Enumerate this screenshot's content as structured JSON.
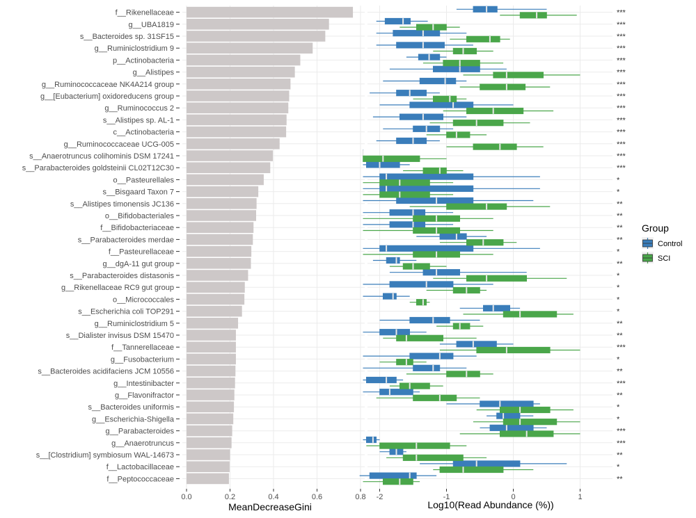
{
  "chart_data": [
    {
      "type": "bar",
      "orientation": "horizontal",
      "xlabel": "MeanDecreaseGini",
      "xlim": [
        0,
        0.8
      ],
      "xticks": [
        "0.0",
        "0.2",
        "0.4",
        "0.6",
        "0.8"
      ],
      "tick_values": [
        0.0,
        0.2,
        0.4,
        0.6,
        0.8
      ],
      "categories": [
        "f__Rikenellaceae",
        "g__UBA1819",
        "s__Bacteroides sp. 31SF15",
        "g__Ruminiclostridium 9",
        "p__Actinobacteria",
        "g__Alistipes",
        "g__Ruminococcaceae NK4A214 group",
        "g__[Eubacterium] oxidoreducens group",
        "g__Ruminococcus 2",
        "s__Alistipes sp. AL-1",
        "c__Actinobacteria",
        "g__Ruminococcaceae UCG-005",
        "s__Anaerotruncus colihominis DSM 17241",
        "s__Parabacteroides goldsteinii CL02T12C30",
        "o__Pasteurellales",
        "s__Bisgaard Taxon 7",
        "s__Alistipes timonensis JC136",
        "o__Bifidobacteriales",
        "f__Bifidobacteriaceae",
        "s__Parabacteroides merdae",
        "f__Pasteurellaceae",
        "g__dgA-11 gut group",
        "s__Parabacteroides distasonis",
        "g__Rikenellaceae RC9 gut group",
        "o__Micrococcales",
        "s__Escherichia coli TOP291",
        "g__Ruminiclostridium 5",
        "s__Dialister invisus DSM 15470",
        "f__Tannerellaceae",
        "g__Fusobacterium",
        "s__Bacteroides acidifaciens JCM 10556",
        "g__Intestinibacter",
        "g__Flavonifractor",
        "s__Bacteroides uniformis",
        "g__Escherichia-Shigella",
        "g__Parabacteroides",
        "g__Anaerotruncus",
        "s__[Clostridium] symbiosum WAL-14673",
        "f__Lactobacillaceae",
        "f__Peptococcaceae"
      ],
      "values": [
        0.765,
        0.655,
        0.638,
        0.58,
        0.523,
        0.498,
        0.478,
        0.472,
        0.468,
        0.46,
        0.458,
        0.428,
        0.397,
        0.385,
        0.355,
        0.33,
        0.322,
        0.32,
        0.308,
        0.305,
        0.298,
        0.296,
        0.283,
        0.268,
        0.266,
        0.255,
        0.237,
        0.227,
        0.227,
        0.227,
        0.225,
        0.223,
        0.22,
        0.218,
        0.215,
        0.21,
        0.207,
        0.2,
        0.198,
        0.195
      ]
    },
    {
      "type": "box",
      "orientation": "horizontal",
      "xlabel": "Log10(Read Abundance (%))",
      "xlim": [
        -2.3,
        1.4
      ],
      "xticks": [
        "-2",
        "-1",
        "0",
        "1"
      ],
      "tick_values": [
        -2,
        -1,
        0,
        1
      ],
      "legend": {
        "title": "Group",
        "position": "right",
        "entries": [
          "Control",
          "SCI"
        ]
      },
      "colors": {
        "Control": "#3a7dba",
        "SCI": "#4aa64a",
        "median": "#e8e8e8",
        "bar": "#cdc8c8",
        "grid": "#ebebeb"
      },
      "significance": [
        "***",
        "***",
        "***",
        "***",
        "***",
        "***",
        "***",
        "***",
        "***",
        "***",
        "***",
        "***",
        "***",
        "***",
        "*",
        "*",
        "**",
        "**",
        "**",
        "**",
        "*",
        "**",
        "*",
        "*",
        "*",
        "*",
        "**",
        "**",
        "***",
        "*",
        "**",
        "***",
        "**",
        "*",
        "*",
        "***",
        "***",
        "**",
        "*",
        "**"
      ],
      "series": [
        {
          "name": "Control",
          "boxes": [
            [
              -0.85,
              -0.6,
              -0.4,
              -0.24,
              0.5
            ],
            [
              -2.05,
              -1.92,
              -1.65,
              -1.54,
              -1.28
            ],
            [
              -2.05,
              -1.8,
              -1.35,
              -1.1,
              -0.7
            ],
            [
              -2.05,
              -1.75,
              -1.35,
              -1.03,
              -0.6
            ],
            [
              -1.6,
              -1.42,
              -1.26,
              -1.1,
              -1.0
            ],
            [
              -1.85,
              -1.2,
              -0.8,
              -0.5,
              -0.1
            ],
            [
              -1.95,
              -1.4,
              -1.02,
              -0.86,
              -0.7
            ],
            [
              -2.15,
              -1.75,
              -1.55,
              -1.3,
              -1.1
            ],
            [
              -2.0,
              -1.55,
              -0.9,
              -0.6,
              0.0
            ],
            [
              -2.1,
              -1.7,
              -1.35,
              -1.05,
              -0.7
            ],
            [
              -1.95,
              -1.5,
              -1.3,
              -1.1,
              -0.9
            ],
            [
              -2.05,
              -1.75,
              -1.5,
              -1.3,
              -1.1
            ],
            [
              -2.25,
              -2.25,
              -2.25,
              -2.25,
              -2.25
            ],
            [
              -2.25,
              -2.2,
              -2.0,
              -1.7,
              -1.55
            ],
            [
              -2.25,
              -2.0,
              -1.9,
              -0.6,
              0.4
            ],
            [
              -2.25,
              -2.0,
              -1.9,
              -0.6,
              0.4
            ],
            [
              -2.25,
              -1.75,
              -1.15,
              -0.6,
              0.3
            ],
            [
              -2.25,
              -1.85,
              -1.5,
              -1.32,
              -0.9
            ],
            [
              -2.25,
              -1.85,
              -1.5,
              -1.32,
              -0.9
            ],
            [
              -1.45,
              -1.1,
              -0.85,
              -0.7,
              -0.4
            ],
            [
              -2.25,
              -2.0,
              -1.9,
              -0.6,
              0.4
            ],
            [
              -2.1,
              -1.9,
              -1.75,
              -1.7,
              -1.45
            ],
            [
              -1.85,
              -1.35,
              -1.15,
              -0.8,
              0.2
            ],
            [
              -2.25,
              -1.85,
              -1.3,
              -0.9,
              -0.3
            ],
            [
              -2.25,
              -1.95,
              -1.8,
              -1.75,
              -1.55
            ],
            [
              -0.8,
              -0.45,
              -0.3,
              -0.05,
              0.1
            ],
            [
              -2.0,
              -1.55,
              -1.2,
              -0.95,
              -0.5
            ],
            [
              -2.25,
              -2.0,
              -1.75,
              -1.55,
              -1.3
            ],
            [
              -1.1,
              -0.85,
              -0.6,
              -0.25,
              0.0
            ],
            [
              -2.25,
              -1.55,
              -1.1,
              -0.9,
              -0.55
            ],
            [
              -2.25,
              -1.5,
              -1.2,
              -1.1,
              -0.7
            ],
            [
              -2.25,
              -2.2,
              -1.9,
              -1.75,
              -1.65
            ],
            [
              -2.25,
              -2.0,
              -1.85,
              -1.5,
              -1.4
            ],
            [
              -1.0,
              -0.5,
              -0.2,
              0.3,
              0.4
            ],
            [
              -0.4,
              -0.25,
              -0.15,
              0.1,
              0.3
            ],
            [
              -0.5,
              -0.35,
              -0.1,
              0.3,
              0.5
            ],
            [
              -2.25,
              -2.2,
              -2.1,
              -2.05,
              -2.0
            ],
            [
              -2.0,
              -1.85,
              -1.75,
              -1.65,
              -1.6
            ],
            [
              -1.4,
              -0.9,
              -0.55,
              0.1,
              0.8
            ],
            [
              -2.3,
              -2.15,
              -1.55,
              -1.45,
              -1.15
            ]
          ]
        },
        {
          "name": "SCI",
          "boxes": [
            [
              -0.2,
              0.1,
              0.35,
              0.5,
              0.95
            ],
            [
              -1.7,
              -1.45,
              -1.2,
              -1.0,
              -0.8
            ],
            [
              -0.95,
              -0.7,
              -0.35,
              -0.2,
              -0.05
            ],
            [
              -1.2,
              -0.9,
              -0.75,
              -0.55,
              -0.3
            ],
            [
              -1.35,
              -1.05,
              -0.8,
              -0.5,
              -0.15
            ],
            [
              -0.75,
              -0.3,
              -0.1,
              0.45,
              1.0
            ],
            [
              -0.8,
              -0.5,
              -0.1,
              0.18,
              0.55
            ],
            [
              -1.5,
              -1.2,
              -0.95,
              -0.85,
              -0.7
            ],
            [
              -1.05,
              -0.7,
              -0.3,
              0.15,
              0.6
            ],
            [
              -1.25,
              -0.9,
              -0.55,
              -0.15,
              0.25
            ],
            [
              -1.3,
              -1.0,
              -0.85,
              -0.65,
              -0.4
            ],
            [
              -1.0,
              -0.6,
              -0.2,
              0.05,
              0.45
            ],
            [
              -2.25,
              -2.25,
              -1.95,
              -1.4,
              -1.0
            ],
            [
              -1.65,
              -1.35,
              -1.1,
              -1.0,
              -0.75
            ],
            [
              -2.25,
              -2.0,
              -1.7,
              -1.25,
              -0.9
            ],
            [
              -2.25,
              -2.0,
              -1.7,
              -1.25,
              -0.9
            ],
            [
              -1.55,
              -1.0,
              -0.4,
              -0.1,
              0.55
            ],
            [
              -2.25,
              -1.5,
              -1.15,
              -0.8,
              -0.3
            ],
            [
              -2.25,
              -1.5,
              -1.15,
              -0.8,
              -0.3
            ],
            [
              -1.1,
              -0.7,
              -0.45,
              -0.15,
              0.05
            ],
            [
              -2.25,
              -1.5,
              -1.15,
              -0.8,
              -0.3
            ],
            [
              -1.85,
              -1.65,
              -1.5,
              -1.25,
              -1.0
            ],
            [
              -1.2,
              -0.7,
              -0.4,
              0.2,
              0.8
            ],
            [
              -1.3,
              -0.9,
              -0.7,
              -0.5,
              -0.4
            ],
            [
              -1.55,
              -1.45,
              -1.35,
              -1.3,
              -1.25
            ],
            [
              -0.75,
              -0.15,
              0.1,
              0.65,
              0.9
            ],
            [
              -1.15,
              -0.9,
              -0.8,
              -0.65,
              -0.45
            ],
            [
              -1.95,
              -1.75,
              -1.6,
              -1.05,
              -0.55
            ],
            [
              -1.1,
              -0.55,
              -0.1,
              0.55,
              1.0
            ],
            [
              -2.0,
              -1.75,
              -1.6,
              -1.5,
              -1.3
            ],
            [
              -1.6,
              -1.0,
              -0.7,
              -0.5,
              -0.3
            ],
            [
              -1.85,
              -1.7,
              -1.55,
              -1.25,
              -1.05
            ],
            [
              -2.05,
              -1.5,
              -1.1,
              -0.85,
              -0.5
            ],
            [
              -0.55,
              -0.2,
              0.1,
              0.55,
              0.9
            ],
            [
              -0.6,
              -0.15,
              0.1,
              0.65,
              1.0
            ],
            [
              -0.8,
              -0.2,
              0.2,
              0.6,
              1.0
            ],
            [
              -2.2,
              -2.0,
              -1.45,
              -0.95,
              -0.7
            ],
            [
              -1.9,
              -1.65,
              -1.45,
              -0.75,
              -0.4
            ],
            [
              -1.2,
              -1.1,
              -0.75,
              -0.15,
              0.3
            ],
            [
              -2.25,
              -1.95,
              -1.7,
              -1.5,
              -1.4
            ]
          ]
        }
      ]
    }
  ]
}
